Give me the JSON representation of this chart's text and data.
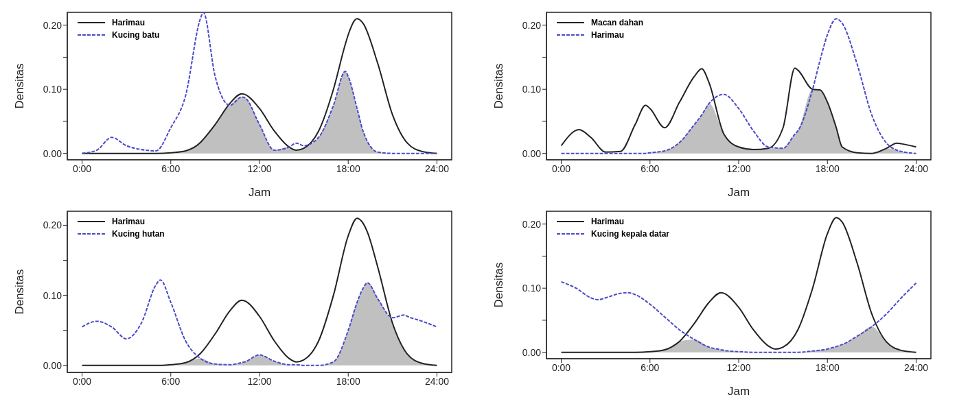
{
  "chart_data": [
    {
      "type": "line",
      "xlabel": "Jam",
      "ylabel": "Densitas",
      "legend": "top left",
      "grid": false,
      "x": [
        0,
        1,
        2,
        3,
        4,
        5,
        6,
        7,
        8,
        8.2,
        9,
        10,
        10.8,
        11,
        12,
        13,
        14,
        14.5,
        15,
        16,
        17,
        17.8,
        18,
        18.6,
        19,
        20,
        21,
        22,
        23,
        24
      ],
      "xlim": [
        -1,
        25
      ],
      "xticks": [
        {
          "value": 0,
          "label": "0:00"
        },
        {
          "value": 6,
          "label": "6:00"
        },
        {
          "value": 12,
          "label": "12:00"
        },
        {
          "value": 18,
          "label": "18:00"
        },
        {
          "value": 24,
          "label": "24:00"
        }
      ],
      "ylim": [
        -0.01,
        0.22
      ],
      "yticks": [
        {
          "value": 0,
          "label": "0.00"
        },
        {
          "value": 0.05,
          "label": null
        },
        {
          "value": 0.1,
          "label": "0.10"
        },
        {
          "value": 0.15,
          "label": null
        },
        {
          "value": 0.2,
          "label": "0.20"
        }
      ],
      "series": [
        {
          "type": "area",
          "color": "#c0c0c0",
          "values": [
            0,
            0,
            0,
            0,
            0,
            0,
            0.001,
            0.004,
            0.017,
            0.022,
            0.045,
            0.075,
            0.088,
            0.087,
            0.045,
            0.005,
            0.01,
            0.005,
            0.008,
            0.025,
            0.075,
            0.128,
            0.12,
            0.07,
            0.035,
            0.002,
            0,
            0,
            0,
            0
          ]
        },
        {
          "name": "Harimau",
          "color": "#222222",
          "line_style": "solid",
          "values": [
            0,
            0,
            0,
            0,
            0,
            0,
            0.001,
            0.004,
            0.017,
            0.022,
            0.045,
            0.078,
            0.093,
            0.092,
            0.07,
            0.035,
            0.01,
            0.005,
            0.008,
            0.035,
            0.1,
            0.17,
            0.185,
            0.21,
            0.203,
            0.14,
            0.06,
            0.016,
            0.003,
            0
          ]
        },
        {
          "name": "Kucing batu",
          "color": "#4a4ac8",
          "line_style": "dashed",
          "values": [
            0,
            0.005,
            0.025,
            0.012,
            0.006,
            0.004,
            0.04,
            0.09,
            0.21,
            0.22,
            0.12,
            0.075,
            0.088,
            0.087,
            0.045,
            0.005,
            0.01,
            0.016,
            0.012,
            0.025,
            0.075,
            0.128,
            0.12,
            0.07,
            0.035,
            0.002,
            0,
            0,
            0,
            0
          ]
        }
      ]
    },
    {
      "type": "line",
      "xlabel": "Jam",
      "ylabel": "Densitas",
      "legend": "top left",
      "grid": false,
      "x": [
        0,
        1.2,
        2,
        3,
        4,
        5,
        5.7,
        6,
        7,
        8,
        9,
        9.5,
        10,
        11,
        12,
        13,
        14,
        15,
        15.8,
        16,
        17,
        17.5,
        18,
        18.6,
        19,
        20,
        21,
        22,
        22.7,
        23,
        24
      ],
      "xlim": [
        -1,
        25
      ],
      "xticks": [
        {
          "value": 0,
          "label": "0:00"
        },
        {
          "value": 6,
          "label": "6:00"
        },
        {
          "value": 12,
          "label": "12:00"
        },
        {
          "value": 18,
          "label": "18:00"
        },
        {
          "value": 24,
          "label": "24:00"
        }
      ],
      "ylim": [
        -0.01,
        0.22
      ],
      "yticks": [
        {
          "value": 0,
          "label": "0.00"
        },
        {
          "value": 0.05,
          "label": null
        },
        {
          "value": 0.1,
          "label": "0.10"
        },
        {
          "value": 0.15,
          "label": null
        },
        {
          "value": 0.2,
          "label": "0.20"
        }
      ],
      "series": [
        {
          "type": "area",
          "color": "#c0c0c0",
          "values": [
            0,
            0,
            0,
            0,
            0,
            0,
            0,
            0.001,
            0.004,
            0.017,
            0.045,
            0.06,
            0.078,
            0.03,
            0.01,
            0.006,
            0.008,
            0.008,
            0.03,
            0.035,
            0.1,
            0.099,
            0.08,
            0.04,
            0.01,
            0.001,
            0,
            0.008,
            0.005,
            0.003,
            0
          ]
        },
        {
          "name": "Macan dahan",
          "color": "#222222",
          "line_style": "solid",
          "values": [
            0.012,
            0.037,
            0.025,
            0.002,
            0.003,
            0.045,
            0.075,
            0.07,
            0.04,
            0.08,
            0.12,
            0.132,
            0.11,
            0.03,
            0.01,
            0.006,
            0.008,
            0.04,
            0.133,
            0.13,
            0.1,
            0.099,
            0.08,
            0.04,
            0.01,
            0.001,
            0,
            0.008,
            0.016,
            0.015,
            0.01
          ]
        },
        {
          "name": "Harimau",
          "color": "#4a4ac8",
          "line_style": "dashed",
          "values": [
            0,
            0,
            0,
            0,
            0,
            0,
            0,
            0.001,
            0.004,
            0.017,
            0.045,
            0.06,
            0.078,
            0.092,
            0.07,
            0.035,
            0.01,
            0.008,
            0.03,
            0.035,
            0.1,
            0.145,
            0.185,
            0.21,
            0.203,
            0.14,
            0.06,
            0.016,
            0.005,
            0.003,
            0
          ]
        }
      ]
    },
    {
      "type": "line",
      "ylabel": "Densitas",
      "legend": "top left",
      "grid": false,
      "x": [
        0,
        1,
        2,
        3,
        4,
        5,
        5.3,
        6,
        7,
        8,
        9,
        10,
        10.8,
        11,
        12,
        13,
        14,
        14.5,
        15,
        16,
        17,
        18,
        18.6,
        19,
        19.3,
        20,
        21,
        21.8,
        22,
        23,
        24
      ],
      "xlim": [
        -1,
        25
      ],
      "xticks": [
        {
          "value": 0,
          "label": "0:00"
        },
        {
          "value": 6,
          "label": "6:00"
        },
        {
          "value": 12,
          "label": "12:00"
        },
        {
          "value": 18,
          "label": "18:00"
        },
        {
          "value": 24,
          "label": "24:00"
        }
      ],
      "ylim": [
        -0.01,
        0.22
      ],
      "yticks": [
        {
          "value": 0,
          "label": "0.00"
        },
        {
          "value": 0.05,
          "label": null
        },
        {
          "value": 0.1,
          "label": "0.10"
        },
        {
          "value": 0.15,
          "label": null
        },
        {
          "value": 0.2,
          "label": "0.20"
        }
      ],
      "series": [
        {
          "type": "area",
          "color": "#c0c0c0",
          "values": [
            0,
            0,
            0,
            0,
            0,
            0,
            0,
            0.001,
            0.004,
            0.01,
            0.002,
            0.001,
            0.004,
            0.005,
            0.015,
            0.006,
            0.001,
            0.001,
            0,
            0,
            0.005,
            0.05,
            0.09,
            0.11,
            0.118,
            0.095,
            0.06,
            0.022,
            0.016,
            0.003,
            0
          ]
        },
        {
          "name": "Harimau",
          "color": "#222222",
          "line_style": "solid",
          "values": [
            0,
            0,
            0,
            0,
            0,
            0,
            0,
            0.001,
            0.004,
            0.017,
            0.045,
            0.078,
            0.093,
            0.092,
            0.07,
            0.035,
            0.01,
            0.005,
            0.008,
            0.035,
            0.1,
            0.185,
            0.21,
            0.203,
            0.19,
            0.14,
            0.06,
            0.022,
            0.016,
            0.003,
            0
          ]
        },
        {
          "name": "Kucing hutan",
          "color": "#4a4ac8",
          "line_style": "dashed",
          "values": [
            0.055,
            0.063,
            0.055,
            0.038,
            0.06,
            0.115,
            0.122,
            0.09,
            0.035,
            0.01,
            0.002,
            0.001,
            0.004,
            0.005,
            0.015,
            0.006,
            0.001,
            0.001,
            0,
            0,
            0.005,
            0.05,
            0.09,
            0.11,
            0.118,
            0.095,
            0.068,
            0.072,
            0.07,
            0.063,
            0.055
          ]
        }
      ]
    },
    {
      "type": "line",
      "xlabel": "Jam",
      "ylabel": "Densitas",
      "legend": "top left",
      "grid": false,
      "x": [
        0,
        1,
        2,
        2.5,
        3,
        4,
        4.5,
        5,
        6,
        7,
        8,
        9,
        10,
        10.8,
        11,
        12,
        13,
        14,
        14.5,
        15,
        16,
        17,
        18,
        18.6,
        19,
        20,
        21,
        22,
        23,
        24
      ],
      "xlim": [
        -1,
        25
      ],
      "xticks": [
        {
          "value": 0,
          "label": "0:00"
        },
        {
          "value": 6,
          "label": "6:00"
        },
        {
          "value": 12,
          "label": "12:00"
        },
        {
          "value": 18,
          "label": "18:00"
        },
        {
          "value": 24,
          "label": "24:00"
        }
      ],
      "ylim": [
        -0.01,
        0.22
      ],
      "yticks": [
        {
          "value": 0,
          "label": "0.00"
        },
        {
          "value": 0.05,
          "label": null
        },
        {
          "value": 0.1,
          "label": "0.10"
        },
        {
          "value": 0.15,
          "label": null
        },
        {
          "value": 0.2,
          "label": "0.20"
        }
      ],
      "series": [
        {
          "type": "area",
          "color": "#c0c0c0",
          "values": [
            0,
            0,
            0,
            0,
            0,
            0,
            0,
            0,
            0.001,
            0.004,
            0.017,
            0.02,
            0.008,
            0.004,
            0.003,
            0.001,
            0,
            0,
            0,
            0,
            0,
            0.002,
            0.005,
            0.009,
            0.012,
            0.025,
            0.04,
            0.016,
            0.003,
            0
          ]
        },
        {
          "name": "Harimau",
          "color": "#222222",
          "line_style": "solid",
          "values": [
            0,
            0,
            0,
            0,
            0,
            0,
            0,
            0,
            0.001,
            0.004,
            0.017,
            0.045,
            0.078,
            0.093,
            0.092,
            0.07,
            0.035,
            0.01,
            0.005,
            0.008,
            0.035,
            0.1,
            0.185,
            0.21,
            0.203,
            0.14,
            0.06,
            0.016,
            0.003,
            0
          ]
        },
        {
          "name": "Kucing kepala datar",
          "color": "#4a4ac8",
          "line_style": "dashed",
          "values": [
            0.11,
            0.1,
            0.085,
            0.082,
            0.085,
            0.092,
            0.093,
            0.09,
            0.075,
            0.055,
            0.035,
            0.02,
            0.008,
            0.004,
            0.003,
            0.001,
            0,
            0,
            0,
            0,
            0,
            0.002,
            0.005,
            0.009,
            0.012,
            0.025,
            0.04,
            0.06,
            0.085,
            0.108
          ]
        }
      ]
    }
  ]
}
